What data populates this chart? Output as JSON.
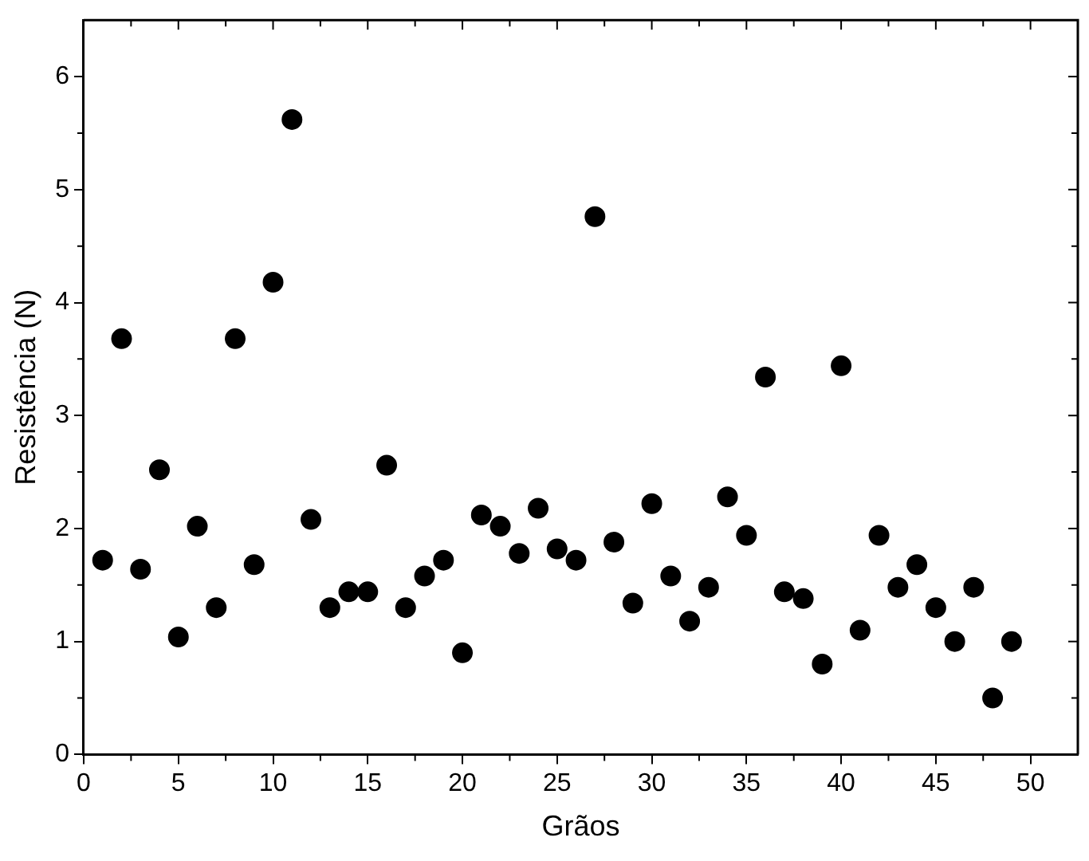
{
  "chart_data": {
    "type": "scatter",
    "xlabel": "Grãos",
    "ylabel": "Resistência (N)",
    "x": [
      1,
      2,
      3,
      4,
      5,
      6,
      7,
      8,
      9,
      10,
      11,
      12,
      13,
      14,
      15,
      16,
      17,
      18,
      19,
      20,
      21,
      22,
      23,
      24,
      25,
      26,
      27,
      28,
      29,
      30,
      31,
      32,
      33,
      34,
      35,
      36,
      37,
      38,
      39,
      40,
      41,
      42,
      43,
      44,
      45,
      46,
      47,
      48,
      49
    ],
    "series": [
      {
        "color": "#000000",
        "values": [
          1.72,
          3.68,
          1.64,
          2.52,
          1.04,
          2.02,
          1.3,
          3.68,
          1.68,
          4.18,
          5.62,
          2.08,
          1.3,
          1.44,
          1.44,
          2.56,
          1.3,
          1.58,
          1.72,
          0.9,
          2.12,
          2.02,
          1.78,
          2.18,
          1.82,
          1.72,
          4.76,
          1.88,
          1.34,
          2.22,
          1.58,
          1.18,
          1.48,
          2.28,
          1.94,
          3.34,
          1.44,
          1.38,
          0.8,
          3.44,
          1.1,
          1.94,
          1.48,
          1.68,
          1.3,
          1.0,
          1.48,
          0.5,
          1.0
        ]
      }
    ],
    "xlim": [
      0,
      52.5
    ],
    "ylim": [
      0,
      6.5
    ],
    "xticks": [
      0,
      5,
      10,
      15,
      20,
      25,
      30,
      35,
      40,
      45,
      50
    ],
    "yticks": [
      0,
      1,
      2,
      3,
      4,
      5,
      6
    ],
    "marker": "circle",
    "grid": false,
    "legend": false
  }
}
